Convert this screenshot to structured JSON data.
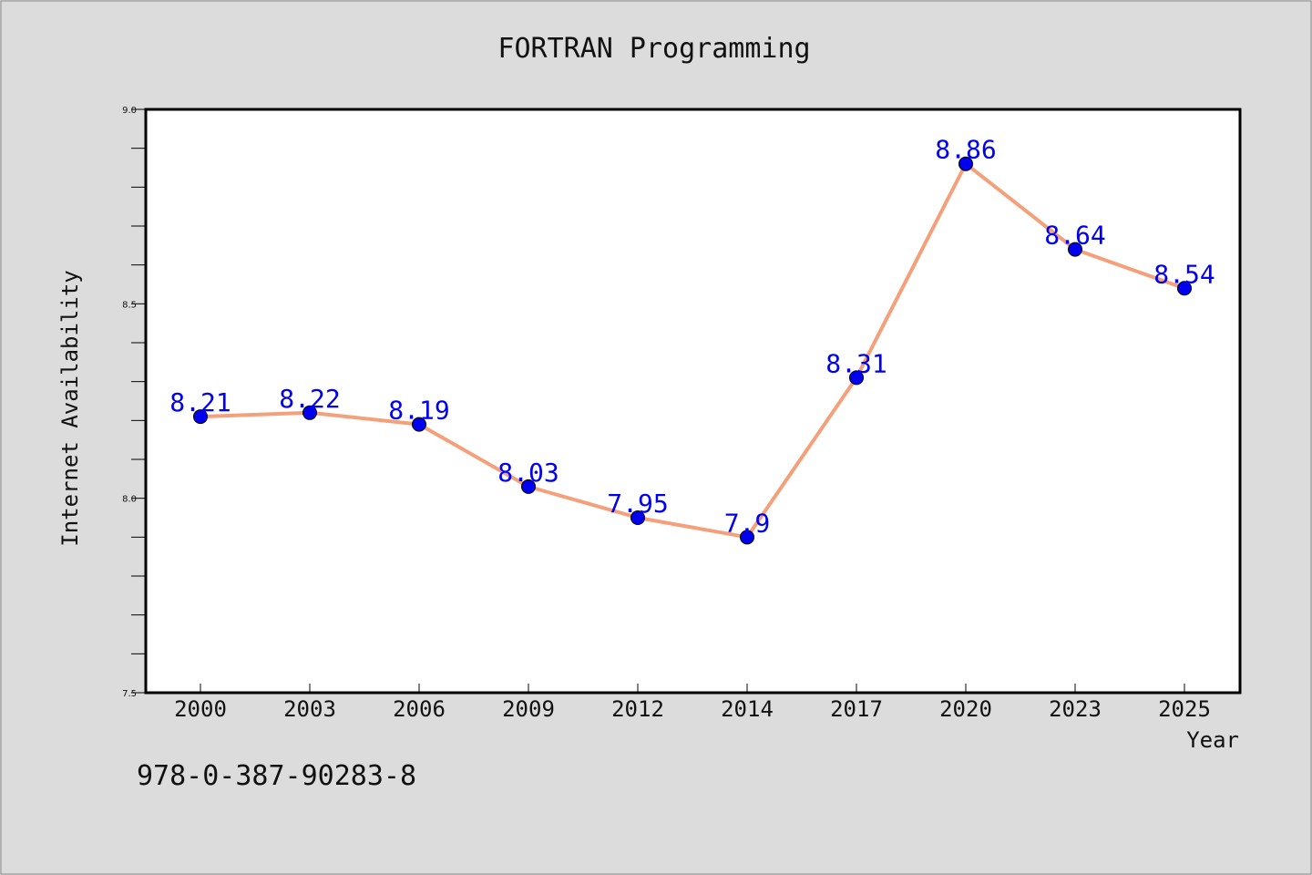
{
  "footer": {
    "code": "978-0-387-90283-8"
  },
  "chart_data": {
    "type": "line",
    "title": "FORTRAN Programming",
    "xlabel": "Year",
    "ylabel": "Internet Availability",
    "categories": [
      "2000",
      "2003",
      "2006",
      "2009",
      "2012",
      "2014",
      "2017",
      "2020",
      "2023",
      "2025"
    ],
    "series": [
      {
        "values": [
          8.21,
          8.22,
          8.19,
          8.03,
          7.95,
          7.9,
          8.31,
          8.86,
          8.64,
          8.54
        ],
        "line_color": "#f4a07a",
        "marker_color": "#0000ee",
        "label_color": "#0000ee"
      }
    ],
    "data_labels": [
      "8.21",
      "8.22",
      "8.19",
      "8.03",
      "7.95",
      "7.9",
      "8.31",
      "8.86",
      "8.64",
      "8.54"
    ],
    "ylim": [
      7.5,
      9.0
    ],
    "y_ticks": [
      "7.5",
      "8.0",
      "8.5",
      "9.0"
    ],
    "grid": false,
    "legend": "none"
  }
}
